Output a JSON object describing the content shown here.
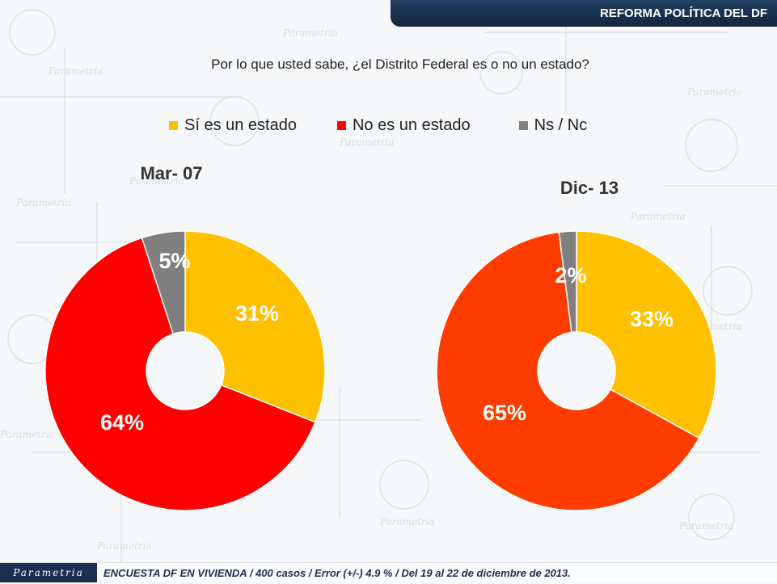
{
  "header": {
    "tab_label": "REFORMA POLÍTICA DEL DF"
  },
  "question": "Por lo que usted sabe, ¿el Distrito Federal es o no un estado?",
  "legend": [
    {
      "label": "Sí es un estado",
      "color": "#ffc000"
    },
    {
      "label": "No es un estado",
      "color": "#ff0000"
    },
    {
      "label": "Ns / Nc",
      "color": "#7f7f7f"
    }
  ],
  "watermark_text": "Parametria",
  "chart_data": [
    {
      "type": "pie",
      "title": "Mar- 07",
      "categories": [
        "Sí es un estado",
        "No es un estado",
        "Ns / Nc"
      ],
      "values": [
        31,
        64,
        5
      ],
      "labels": [
        "31%",
        "64%",
        "5%"
      ],
      "colors": [
        "#ffc000",
        "#ff0000",
        "#7f7f7f"
      ]
    },
    {
      "type": "pie",
      "title": "Dic- 13",
      "categories": [
        "Sí es un estado",
        "No es un estado",
        "Ns / Nc"
      ],
      "values": [
        33,
        65,
        2
      ],
      "labels": [
        "33%",
        "65%",
        "2%"
      ],
      "colors": [
        "#ffc000",
        "#ff3c00",
        "#7f7f7f"
      ]
    }
  ],
  "footer": {
    "logo_text": "Parametria",
    "note": "ENCUESTA DF EN VIVIENDA / 400 casos / Error (+/-) 4.9 % / Del 19 al 22 de diciembre de 2013."
  }
}
